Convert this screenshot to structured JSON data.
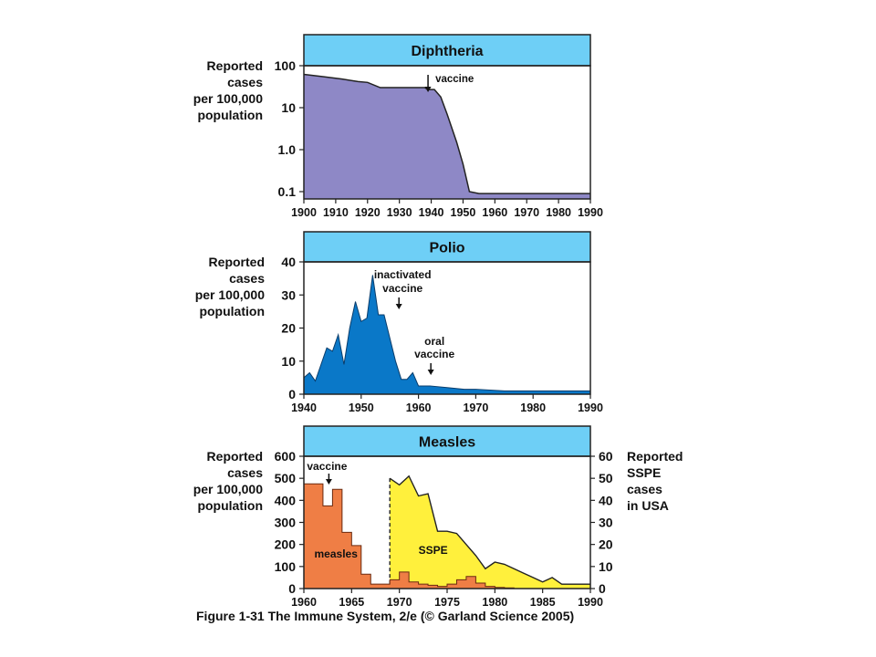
{
  "caption": "Figure 1-31  The Immune System, 2/e (© Garland Science 2005)",
  "colors": {
    "header_bg": "#6ecff6",
    "diphtheria_fill": "#8e88c6",
    "polio_fill": "#0a78c8",
    "measles_fill": "#ef7e45",
    "sspe_fill": "#fff03c"
  },
  "chart_data": [
    {
      "type": "area",
      "title": "Diphtheria",
      "ylabel_lines": [
        "Reported",
        "cases",
        "per 100,000",
        "population"
      ],
      "y_scale": "log",
      "ylim": [
        0.1,
        100
      ],
      "y_ticks": [
        100,
        10,
        1.0,
        0.1
      ],
      "y_tick_labels": [
        "100",
        "10",
        "1.0",
        "0.1"
      ],
      "xlim": [
        1900,
        1990
      ],
      "x_ticks": [
        "1900",
        "1910",
        "1920",
        "1930",
        "1940",
        "1950",
        "1960",
        "1970",
        "1980",
        "1990"
      ],
      "x": [
        1900,
        1906,
        1912,
        1917,
        1920,
        1924,
        1930,
        1935,
        1938,
        1939,
        1941,
        1943,
        1945,
        1948,
        1950,
        1952,
        1955,
        1960,
        1970,
        1980,
        1990
      ],
      "y": [
        62,
        55,
        48,
        42,
        40,
        30,
        30,
        30,
        30,
        27,
        27,
        18,
        7,
        1.5,
        0.45,
        0.1,
        0.09,
        0.09,
        0.09,
        0.09,
        0.09
      ],
      "annotations": [
        {
          "text": "vaccine",
          "x": 1939,
          "y": 30
        }
      ]
    },
    {
      "type": "area",
      "title": "Polio",
      "ylabel_lines": [
        "Reported",
        "cases",
        "per 100,000",
        "population"
      ],
      "ylim": [
        0,
        40
      ],
      "y_ticks": [
        "0",
        "10",
        "20",
        "30",
        "40"
      ],
      "xlim": [
        1940,
        1990
      ],
      "x_ticks": [
        "1940",
        "1950",
        "1960",
        "1970",
        "1980",
        "1990"
      ],
      "x": [
        1940,
        1941,
        1942,
        1943,
        1944,
        1945,
        1946,
        1947,
        1948,
        1949,
        1950,
        1951,
        1952,
        1953,
        1954,
        1955,
        1956,
        1957,
        1958,
        1959,
        1960,
        1961,
        1962,
        1965,
        1968,
        1970,
        1975,
        1980,
        1990
      ],
      "y": [
        5,
        6.5,
        4,
        9,
        14,
        13,
        18,
        9,
        20,
        28,
        22,
        23,
        36,
        24,
        24,
        17,
        10,
        4.5,
        4.5,
        6.5,
        2.5,
        2.5,
        2.5,
        2,
        1.5,
        1.5,
        1,
        1,
        1
      ],
      "annotations": [
        {
          "text_lines": [
            "inactivated",
            "vaccine"
          ],
          "x": 1955,
          "y": 24
        },
        {
          "text_lines": [
            "oral",
            "vaccine"
          ],
          "x": 1962,
          "y": 4
        }
      ]
    },
    {
      "type": "area",
      "title": "Measles",
      "ylabel_lines": [
        "Reported",
        "cases",
        "per 100,000",
        "population"
      ],
      "ylabel_right_lines": [
        "Reported",
        "SSPE",
        "cases",
        "in USA"
      ],
      "ylim": [
        0,
        600
      ],
      "y_ticks": [
        "0",
        "100",
        "200",
        "300",
        "400",
        "500",
        "600"
      ],
      "y2lim": [
        0,
        60
      ],
      "y2_ticks": [
        "0",
        "10",
        "20",
        "30",
        "40",
        "50",
        "60"
      ],
      "xlim": [
        1960,
        1990
      ],
      "x_ticks": [
        "1960",
        "1965",
        "1970",
        "1975",
        "1980",
        "1985",
        "1990"
      ],
      "series": [
        {
          "name": "measles",
          "type": "step",
          "x": [
            1960,
            1961,
            1962,
            1963,
            1964,
            1965,
            1966,
            1967,
            1968,
            1969,
            1970,
            1971,
            1972,
            1973,
            1974,
            1975,
            1976,
            1977,
            1978,
            1979,
            1980,
            1981
          ],
          "y": [
            475,
            475,
            375,
            450,
            255,
            195,
            65,
            20,
            20,
            40,
            75,
            30,
            20,
            15,
            10,
            20,
            40,
            55,
            25,
            10,
            5,
            3
          ]
        },
        {
          "name": "SSPE",
          "axis": "right",
          "x": [
            1969,
            1970,
            1971,
            1972,
            1973,
            1974,
            1975,
            1976,
            1977,
            1978,
            1979,
            1980,
            1981,
            1982,
            1983,
            1984,
            1985,
            1986,
            1987,
            1988,
            1989,
            1990
          ],
          "y": [
            50,
            47,
            51,
            42,
            43,
            26,
            26,
            25,
            20,
            15,
            9,
            12,
            11,
            9,
            7,
            5,
            3,
            5,
            2,
            2,
            2,
            2
          ]
        }
      ],
      "annotations": [
        {
          "text": "vaccine",
          "x": 1963,
          "y": 480
        }
      ]
    }
  ]
}
